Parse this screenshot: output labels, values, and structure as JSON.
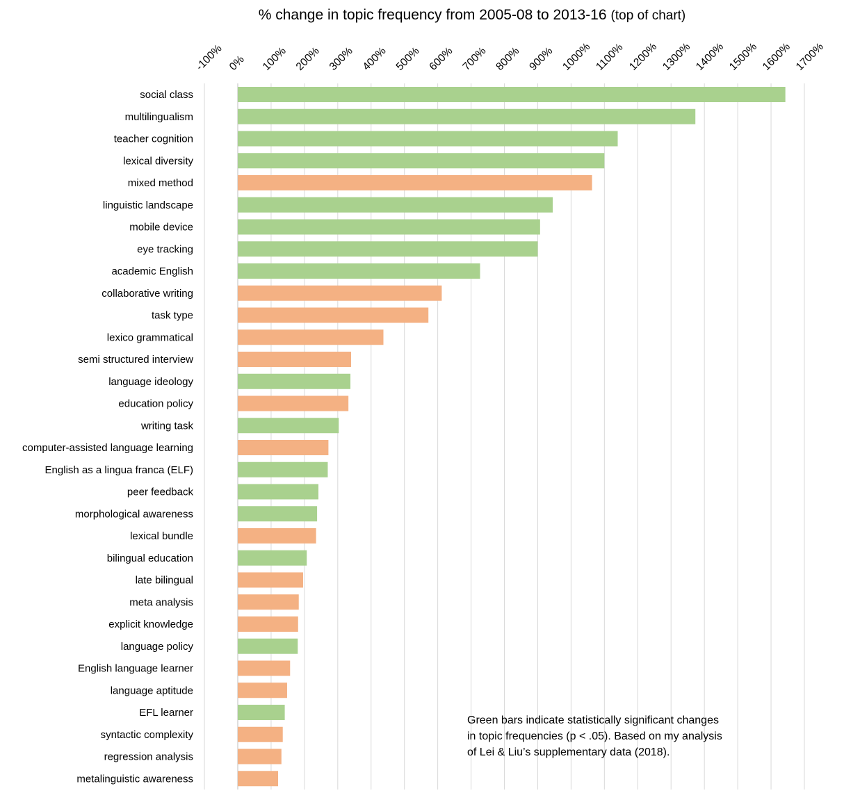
{
  "chart_data": {
    "type": "bar",
    "orientation": "horizontal",
    "title": "% change in topic frequency from 2005-08 to 2013-16",
    "subtitle": "(top of chart)",
    "xlabel": "",
    "ylabel": "",
    "xlim": [
      -100,
      1700
    ],
    "tick_values": [
      -100,
      0,
      100,
      200,
      300,
      400,
      500,
      600,
      700,
      800,
      900,
      1000,
      1100,
      1200,
      1300,
      1400,
      1500,
      1600,
      1700
    ],
    "tick_labels": [
      "-100%",
      "0%",
      "100%",
      "200%",
      "300%",
      "400%",
      "500%",
      "600%",
      "700%",
      "800%",
      "900%",
      "1000%",
      "1100%",
      "1200%",
      "1300%",
      "1400%",
      "1500%",
      "1600%",
      "1700%"
    ],
    "axis_position": "top",
    "grid": true,
    "colors": {
      "significant": "#a9d18e",
      "not_significant": "#f4b183",
      "grid": "#d9d9d9"
    },
    "categories": [
      "social class",
      "multilingualism",
      "teacher cognition",
      "lexical diversity",
      "mixed method",
      "linguistic landscape",
      "mobile device",
      "eye tracking",
      "academic English",
      "collaborative writing",
      "task type",
      "lexico grammatical",
      "semi structured interview",
      "language ideology",
      "education policy",
      "writing task",
      "computer-assisted language learning",
      "English as a lingua franca (ELF)",
      "peer feedback",
      "morphological awareness",
      "lexical bundle",
      "bilingual education",
      "late bilingual",
      "meta analysis",
      "explicit knowledge",
      "language policy",
      "English language learner",
      "language aptitude",
      "EFL learner",
      "syntactic complexity",
      "regression analysis",
      "metalinguistic awareness"
    ],
    "values": [
      1643,
      1373,
      1140,
      1100,
      1063,
      945,
      907,
      900,
      727,
      612,
      572,
      437,
      340,
      338,
      332,
      303,
      272,
      270,
      242,
      238,
      235,
      207,
      196,
      183,
      181,
      180,
      157,
      148,
      141,
      135,
      131,
      121
    ],
    "significant": [
      true,
      true,
      true,
      true,
      false,
      true,
      true,
      true,
      true,
      false,
      false,
      false,
      false,
      true,
      false,
      true,
      false,
      true,
      true,
      true,
      false,
      true,
      false,
      false,
      false,
      true,
      false,
      false,
      true,
      false,
      false,
      false
    ],
    "annotation": [
      "Green bars indicate statistically significant changes",
      "in topic frequencies (p < .05). Based on my analysis",
      "of Lei & Liu’s supplementary data (2018)."
    ]
  }
}
